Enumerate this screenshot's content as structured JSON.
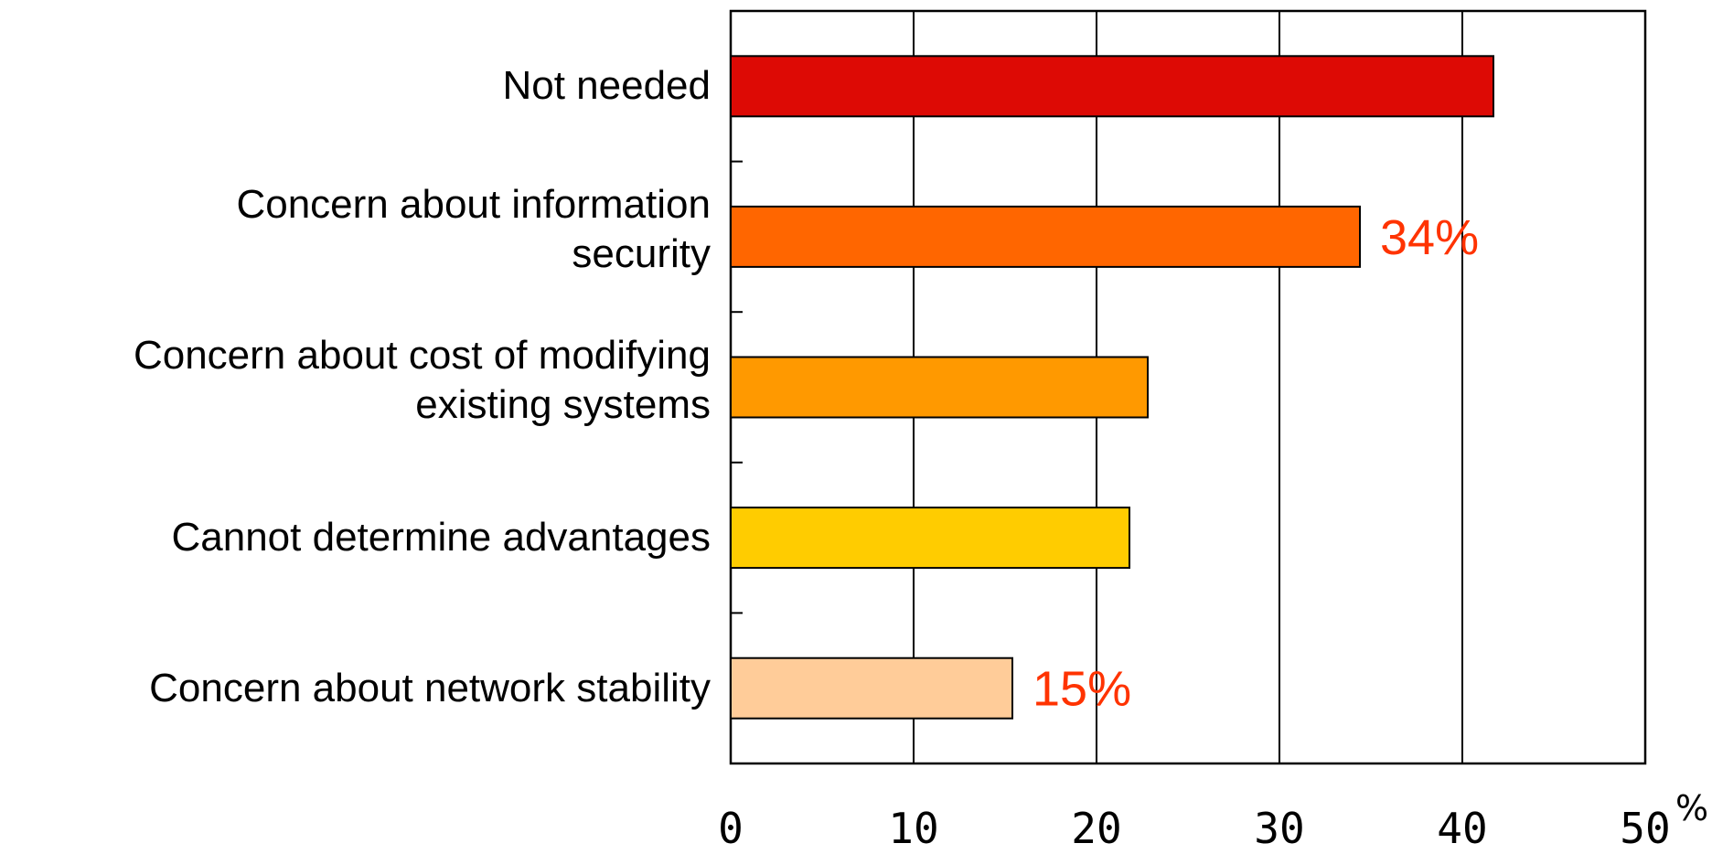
{
  "chart_data": {
    "type": "bar",
    "orientation": "horizontal",
    "title": "",
    "xlabel": "",
    "ylabel": "",
    "unit_label": "%",
    "xlim": [
      0,
      50
    ],
    "x_ticks": [
      "0",
      "10",
      "20",
      "30",
      "40",
      "50"
    ],
    "grid": true,
    "legend": "none",
    "categories": [
      "Not needed",
      "Concern about information\nsecurity",
      "Concern about cost of modifying\nexisting systems",
      "Cannot determine advantages",
      "Concern about network stability"
    ],
    "values": [
      41.7,
      34.4,
      22.8,
      21.8,
      15.4
    ],
    "colors": [
      "#dd0a05",
      "#ff6600",
      "#ff9900",
      "#ffcc00",
      "#ffcc99"
    ],
    "data_labels": [
      {
        "index": 1,
        "text": "34%"
      },
      {
        "index": 4,
        "text": "15%"
      }
    ],
    "label_color": "#ff3300"
  }
}
